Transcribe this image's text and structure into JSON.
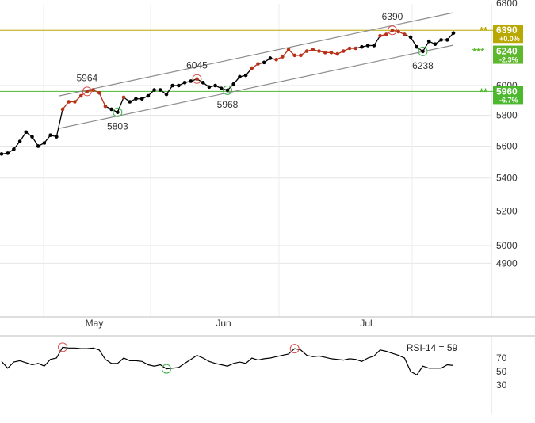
{
  "chart_data": [
    {
      "type": "line",
      "panel": "price",
      "y_scale": "log",
      "ylim": [
        4700,
        6800
      ],
      "y_ticks": [
        4900,
        5000,
        5200,
        5400,
        5600,
        5800,
        6000,
        6800
      ],
      "y_tick_labels": [
        "4900",
        "5000",
        "5200",
        "5400",
        "5600",
        "5800",
        "6000",
        "6800"
      ],
      "x_labels": [
        "May",
        "Jun",
        "Jul"
      ],
      "grid": true,
      "colors": {
        "up_trend_segment": "#b8321a",
        "normal_segment": "#000000",
        "channel": "#8c8c8c",
        "level_6390": "#b8a800",
        "level_6240": "#5db82e",
        "level_5960": "#4cb82e"
      },
      "series": [
        {
          "values": [
            5550,
            5555,
            5580,
            5630,
            5690,
            5660,
            5600,
            5620,
            5670,
            5660,
            5840,
            5890,
            5890,
            5930,
            5960,
            5970,
            5950,
            5860,
            5840,
            5820,
            5920,
            5890,
            5910,
            5910,
            5930,
            5970,
            5970,
            5940,
            6000,
            6000,
            6020,
            6030,
            6045,
            6020,
            5990,
            6000,
            5980,
            5968,
            6010,
            6060,
            6070,
            6120,
            6150,
            6160,
            6190,
            6180,
            6200,
            6250,
            6210,
            6210,
            6240,
            6250,
            6240,
            6230,
            6230,
            6220,
            6240,
            6260,
            6260,
            6270,
            6280,
            6280,
            6350,
            6360,
            6390,
            6380,
            6360,
            6340,
            6270,
            6238,
            6310,
            6290,
            6320,
            6320,
            6370
          ],
          "red_segments": [
            [
              10,
              17
            ],
            [
              20,
              20
            ],
            [
              32,
              32
            ],
            [
              41,
              42
            ],
            [
              45,
              58
            ],
            [
              62,
              66
            ]
          ]
        }
      ],
      "pivot_labels": [
        {
          "text": "5964",
          "value": 5964,
          "kind": "high"
        },
        {
          "text": "5803",
          "value": 5803,
          "kind": "low"
        },
        {
          "text": "6045",
          "value": 6045,
          "kind": "high"
        },
        {
          "text": "5968",
          "value": 5968,
          "kind": "low"
        },
        {
          "text": "6390",
          "value": 6390,
          "kind": "high"
        },
        {
          "text": "6238",
          "value": 6238,
          "kind": "low"
        }
      ],
      "levels": [
        {
          "value": 6390,
          "label": "6390",
          "change": "+0.0%",
          "stars": "**"
        },
        {
          "value": 6240,
          "label": "6240",
          "change": "-2.3%",
          "stars": "***"
        },
        {
          "value": 5960,
          "label": "5960",
          "change": "-6.7%",
          "stars": "**"
        }
      ]
    },
    {
      "type": "line",
      "panel": "rsi",
      "ylim": [
        0,
        100
      ],
      "y_ticks": [
        30,
        50,
        70
      ],
      "y_tick_labels": [
        "30",
        "50",
        "70"
      ],
      "legend_text": "RSI-14 = 59",
      "values": [
        65,
        55,
        64,
        66,
        63,
        60,
        62,
        58,
        68,
        70,
        86,
        85,
        85,
        84,
        84,
        85,
        82,
        68,
        62,
        62,
        70,
        66,
        66,
        65,
        60,
        58,
        60,
        54,
        55,
        56,
        62,
        68,
        74,
        70,
        65,
        62,
        60,
        58,
        62,
        64,
        62,
        70,
        67,
        69,
        70,
        72,
        74,
        76,
        84,
        82,
        74,
        72,
        73,
        71,
        69,
        68,
        67,
        69,
        68,
        65,
        70,
        73,
        82,
        80,
        77,
        74,
        70,
        50,
        45,
        58,
        55,
        55,
        55,
        60,
        59
      ]
    }
  ]
}
